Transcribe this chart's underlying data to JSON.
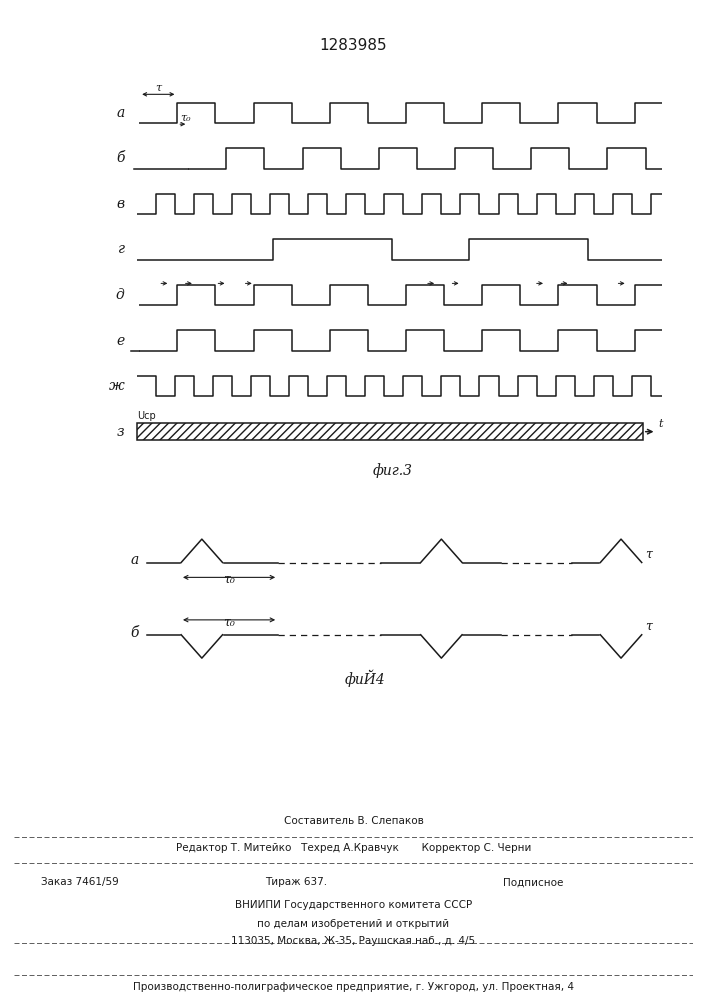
{
  "title": "1283985",
  "fig3_label": "фиг.3",
  "fig4_label": "фиЙ4",
  "background": "#ffffff",
  "line_color": "#1a1a1a",
  "footer_lines": [
    "Составитель В. Слепаков",
    "Редактор Т. Митейко   Техред А.Кравчук       Корректор С. Черни",
    "Заказ 7461/59",
    "Тираж 637.",
    "Подписное",
    "ВНИИПИ Государственного комитета СССР",
    "по делам изобретений и открытий",
    "113035, Москва, Ж-35, Раушская наб., д. 4/5",
    "Производственно-полиграфическое предприятие, г. Ужгород, ул. Проектная, 4"
  ]
}
